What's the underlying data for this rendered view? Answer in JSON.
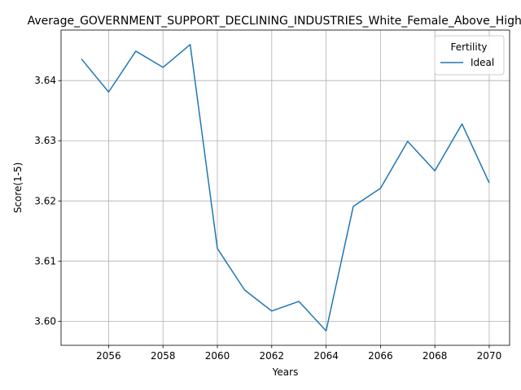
{
  "chart_data": {
    "type": "line",
    "title": "Average_GOVERNMENT_SUPPORT_DECLINING_INDUSTRIES_White_Female_Above_High_School",
    "xlabel": "Years",
    "ylabel": "Score(1-5)",
    "x": [
      2055,
      2056,
      2057,
      2058,
      2059,
      2060,
      2061,
      2062,
      2063,
      2064,
      2065,
      2066,
      2067,
      2068,
      2069,
      2070
    ],
    "series": [
      {
        "name": "Ideal",
        "color": "#1f77b4",
        "values": [
          3.6436,
          3.6381,
          3.6449,
          3.6422,
          3.646,
          3.6121,
          3.6052,
          3.6017,
          3.6033,
          3.5984,
          3.6191,
          3.6221,
          3.6299,
          3.625,
          3.6328,
          3.623
        ]
      }
    ],
    "xticks": [
      2056,
      2058,
      2060,
      2062,
      2064,
      2066,
      2068,
      2070
    ],
    "xtick_labels": [
      "2056",
      "2058",
      "2060",
      "2062",
      "2064",
      "2066",
      "2068",
      "2070"
    ],
    "yticks": [
      3.6,
      3.61,
      3.62,
      3.63,
      3.64
    ],
    "ytick_labels": [
      "3.60",
      "3.61",
      "3.62",
      "3.63",
      "3.64"
    ],
    "xlim": [
      2054.25,
      2070.75
    ],
    "ylim": [
      3.596,
      3.6484
    ],
    "grid": true,
    "legend": {
      "title": "Fertility",
      "placement": "top-right"
    }
  }
}
